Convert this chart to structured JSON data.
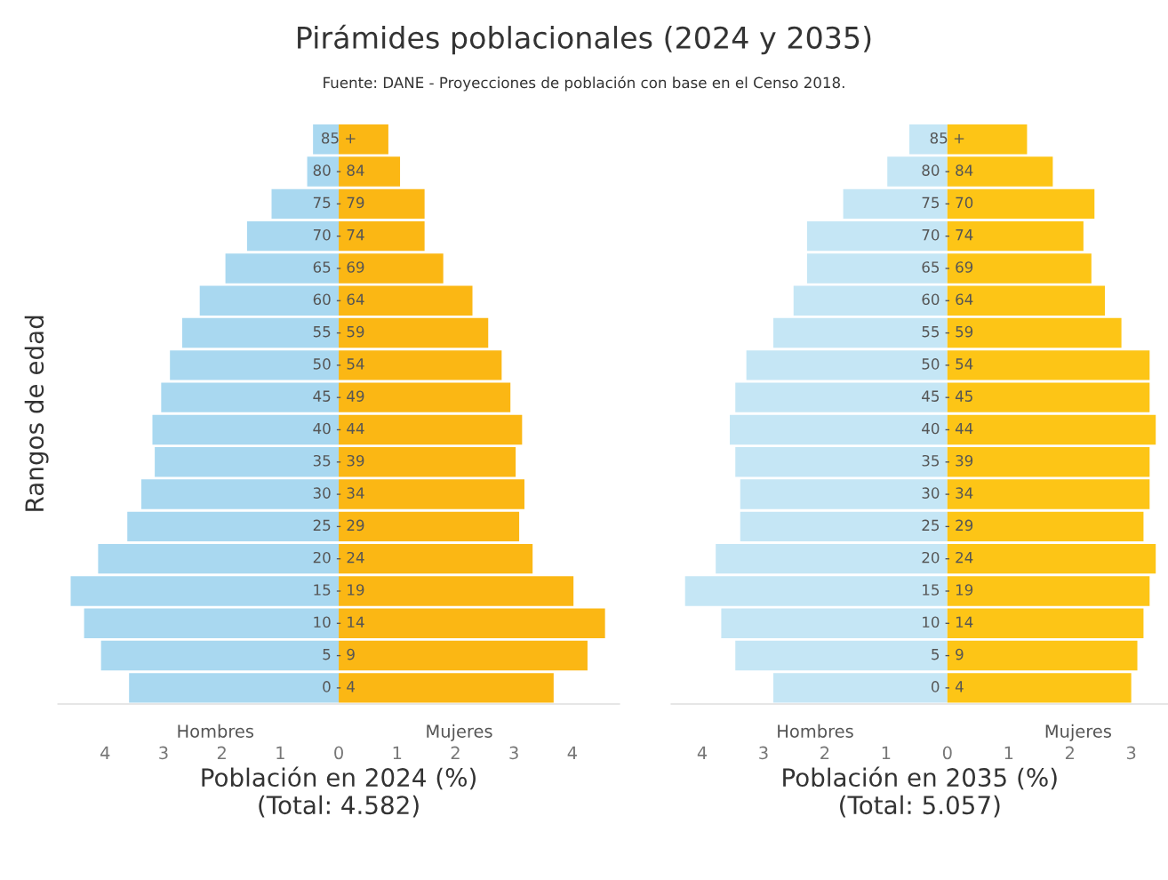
{
  "chart_data": [
    {
      "type": "bar",
      "orientation": "horizontal",
      "title": "Pirámides poblacionales (2024 y 2035)",
      "subtitle": "Fuente: DANE - Proyecciones de población con base en el Censo 2018.",
      "ylabel": "Rangos de edad",
      "xlabel": "Población en 2024 (%)\n(Total: 4.582)",
      "categories": [
        "85 +",
        "80 - 84",
        "75 - 79",
        "70 - 74",
        "65 - 69",
        "60 - 64",
        "55 - 59",
        "50 - 54",
        "45 - 49",
        "40 - 44",
        "35 - 39",
        "30 - 34",
        "25 - 29",
        "20 - 24",
        "15 - 19",
        "10 - 14",
        "5 - 9",
        "0 - 4"
      ],
      "series": [
        {
          "name": "Hombres",
          "color": "#a9d8f0",
          "values": [
            -0.44,
            -0.54,
            -1.15,
            -1.57,
            -1.94,
            -2.38,
            -2.68,
            -2.89,
            -3.04,
            -3.19,
            -3.15,
            -3.38,
            -3.62,
            -4.12,
            -4.59,
            -4.36,
            -4.07,
            -3.59
          ]
        },
        {
          "name": "Mujeres",
          "color": "#fbb714",
          "values": [
            0.85,
            1.05,
            1.47,
            1.47,
            1.79,
            2.29,
            2.56,
            2.79,
            2.94,
            3.14,
            3.03,
            3.18,
            3.09,
            3.32,
            4.02,
            4.56,
            4.26,
            3.68
          ]
        }
      ],
      "xlim": [
        -4.8,
        4.8
      ],
      "xticks": [
        {
          "value": -4,
          "label": "4"
        },
        {
          "value": -3,
          "label": "3"
        },
        {
          "value": -2,
          "label": "2"
        },
        {
          "value": -1,
          "label": "1"
        },
        0,
        1,
        2,
        3,
        4
      ],
      "tick_labels": "x",
      "grid": false,
      "legend": false,
      "stacked": true
    },
    {
      "type": "bar",
      "orientation": "horizontal",
      "xlabel": "Población en 2035 (%)\n(Total: 5.057)",
      "categories": [
        "85 +",
        "80 - 84",
        "75 - 70",
        "70 - 74",
        "65 - 69",
        "60 - 64",
        "55 - 59",
        "50 - 54",
        "45 - 45",
        "40 - 44",
        "35 - 39",
        "30 - 34",
        "25 - 29",
        "20 - 24",
        "15 - 19",
        "10 - 14",
        "5 - 9",
        "0 - 4"
      ],
      "series": [
        {
          "name": "Hombres",
          "color": "#c5e6f5",
          "values": [
            -0.62,
            -0.98,
            -1.7,
            -2.29,
            -2.29,
            -2.51,
            -2.84,
            -3.28,
            -3.46,
            -3.55,
            -3.46,
            -3.38,
            -3.38,
            -3.78,
            -4.28,
            -3.69,
            -3.46,
            -2.84
          ]
        },
        {
          "name": "Mujeres",
          "color": "#fdc516",
          "values": [
            1.3,
            1.72,
            2.4,
            2.22,
            2.35,
            2.57,
            2.84,
            3.3,
            3.3,
            3.4,
            3.3,
            3.3,
            3.2,
            3.4,
            3.3,
            3.2,
            3.1,
            3.0
          ]
        }
      ],
      "xlim": [
        -4.5,
        3.6
      ],
      "xticks": [
        {
          "value": -4,
          "label": "4"
        },
        {
          "value": -3,
          "label": "3"
        },
        {
          "value": -2,
          "label": "2"
        },
        {
          "value": -1,
          "label": "1"
        },
        0,
        1,
        2,
        3
      ],
      "tick_labels": "x",
      "grid": false,
      "legend": false,
      "stacked": true
    }
  ]
}
